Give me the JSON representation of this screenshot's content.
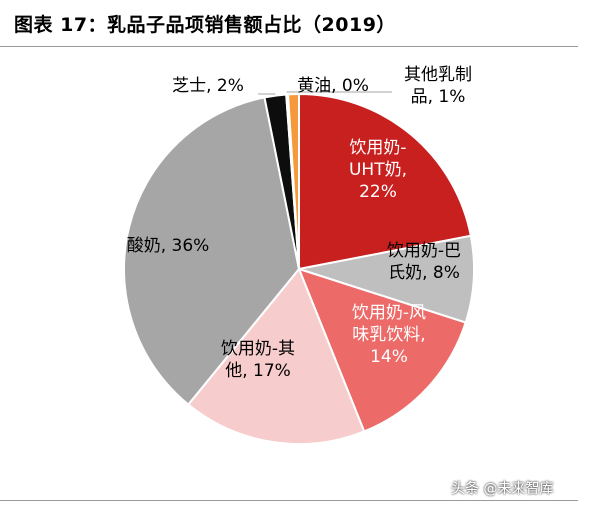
{
  "title": "图表 17：乳品子品项销售额占比（2019）",
  "watermark": "头条 @未来智库",
  "chart_data": {
    "type": "pie",
    "title": "图表 17：乳品子品项销售额占比（2019）",
    "legend": "none",
    "slices": [
      {
        "name": "饮用奶-UHT奶",
        "value": 22,
        "label": "22%",
        "color": "#c8201f",
        "text_color": "#ffffff"
      },
      {
        "name": "饮用奶-巴氏奶",
        "value": 8,
        "label": "8%",
        "color": "#bfbfbf",
        "text_color": "#000000"
      },
      {
        "name": "饮用奶-风味乳饮料",
        "value": 14,
        "label": "14%",
        "color": "#ec6b69",
        "text_color": "#ffffff"
      },
      {
        "name": "饮用奶-其他",
        "value": 17,
        "label": "17%",
        "color": "#f7cccc",
        "text_color": "#000000"
      },
      {
        "name": "酸奶",
        "value": 36,
        "label": "36%",
        "color": "#a6a6a6",
        "text_color": "#000000"
      },
      {
        "name": "芝士",
        "value": 2,
        "label": "2%",
        "color": "#0d0d0d",
        "text_color": "#000000"
      },
      {
        "name": "黄油",
        "value": 0,
        "label": "0%",
        "color": "#f4a460",
        "text_color": "#000000"
      },
      {
        "name": "其他乳制品",
        "value": 1,
        "label": "1%",
        "color": "#f59a3c",
        "text_color": "#000000"
      }
    ],
    "slice_labels": [
      [
        "饮用奶-",
        "UHT奶,",
        "22%"
      ],
      [
        "饮用奶-巴",
        "氏奶, 8%"
      ],
      [
        "饮用奶-风",
        "味乳饮料,",
        "14%"
      ],
      [
        "饮用奶-其",
        "他, 17%"
      ],
      [
        "酸奶, 36%"
      ],
      [
        "芝士, 2%"
      ],
      [
        "黄油, 0%"
      ],
      [
        "其他乳制",
        "品, 1%"
      ]
    ]
  }
}
